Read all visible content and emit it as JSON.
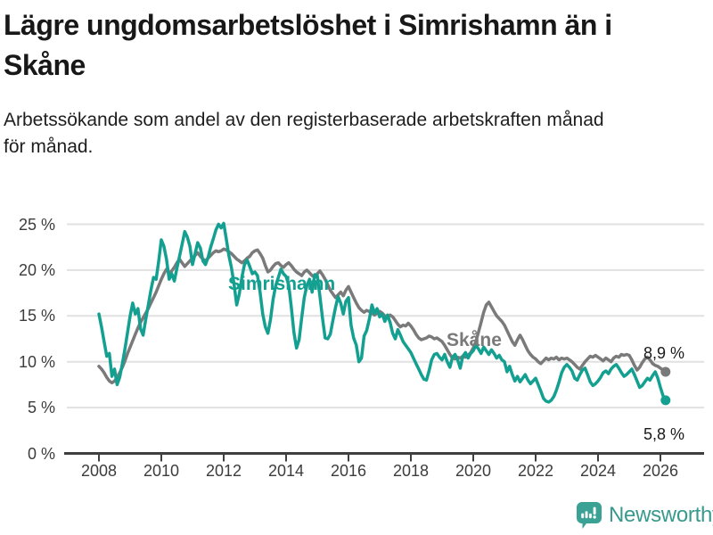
{
  "header": {
    "title_lines": [
      "Lägre ungdomsarbetslöshet i Simrishamn än i",
      "Skåne"
    ],
    "subtitle_lines": [
      "Arbetssökande som andel av den registerbaserade arbetskraften månad",
      "för månad."
    ]
  },
  "chart_data": {
    "type": "line",
    "title": "Lägre ungdomsarbetslöshet i Simrishamn än i Skåne",
    "subtitle": "Arbetssökande som andel av den registerbaserade arbetskraften månad för månad.",
    "xlabel": "",
    "ylabel": "",
    "x_unit": "monthly, Jan 2008 – Mar 2026",
    "x_start_year": 2008,
    "ylim": [
      0,
      25
    ],
    "grid": "horizontal",
    "legend": "inline-labels",
    "y_ticks": [
      {
        "label": "0 %",
        "value": 0
      },
      {
        "label": "5 %",
        "value": 5
      },
      {
        "label": "10 %",
        "value": 10
      },
      {
        "label": "15 %",
        "value": 15
      },
      {
        "label": "20 %",
        "value": 20
      },
      {
        "label": "25 %",
        "value": 25
      }
    ],
    "x_ticks": [
      {
        "label": "2008",
        "year": 2008
      },
      {
        "label": "2010",
        "year": 2010
      },
      {
        "label": "2012",
        "year": 2012
      },
      {
        "label": "2014",
        "year": 2014
      },
      {
        "label": "2016",
        "year": 2016
      },
      {
        "label": "2018",
        "year": 2018
      },
      {
        "label": "2020",
        "year": 2020
      },
      {
        "label": "2022",
        "year": 2022
      },
      {
        "label": "2024",
        "year": 2024
      },
      {
        "label": "2026",
        "year": 2026
      }
    ],
    "series": [
      {
        "name": "Simrishamn",
        "color": "#14a091",
        "end_label": "5,8 %",
        "end_value": 5.8,
        "values": [
          15.2,
          13.8,
          12.2,
          10.6,
          10.9,
          8.4,
          9.2,
          7.5,
          8.3,
          9.8,
          11.4,
          13.2,
          15.0,
          16.4,
          15.2,
          15.8,
          13.6,
          12.9,
          14.6,
          16.2,
          17.8,
          19.2,
          19.0,
          21.0,
          23.3,
          22.6,
          21.2,
          19.0,
          19.6,
          18.8,
          20.2,
          21.5,
          22.8,
          24.2,
          23.6,
          22.6,
          20.6,
          21.8,
          23.0,
          22.4,
          21.0,
          20.6,
          21.4,
          22.5,
          23.4,
          24.4,
          25.0,
          24.6,
          25.1,
          23.4,
          21.6,
          20.2,
          18.4,
          16.2,
          17.4,
          19.2,
          20.6,
          21.1,
          20.4,
          19.6,
          19.8,
          19.4,
          17.6,
          15.2,
          13.8,
          13.1,
          14.6,
          16.8,
          18.3,
          19.2,
          20.1,
          19.6,
          19.3,
          18.4,
          16.0,
          13.2,
          11.5,
          12.4,
          14.8,
          17.0,
          18.3,
          19.0,
          17.6,
          19.5,
          19.4,
          17.2,
          14.8,
          12.6,
          12.5,
          13.0,
          14.5,
          15.9,
          17.1,
          16.4,
          15.2,
          16.6,
          17.0,
          14.0,
          12.6,
          11.8,
          10.0,
          10.4,
          12.8,
          13.4,
          14.6,
          16.2,
          15.3,
          15.8,
          14.9,
          15.2,
          14.4,
          15.1,
          14.3,
          13.1,
          12.5,
          13.5,
          12.9,
          12.2,
          11.8,
          11.4,
          11.0,
          10.4,
          9.8,
          9.2,
          8.6,
          8.1,
          8.0,
          9.0,
          10.2,
          10.8,
          10.9,
          10.5,
          10.2,
          10.8,
          10.0,
          9.4,
          10.5,
          10.8,
          10.2,
          9.3,
          10.6,
          11.0,
          10.4,
          10.9,
          11.2,
          11.8,
          11.4,
          10.9,
          11.6,
          11.2,
          10.8,
          11.3,
          10.9,
          10.4,
          10.7,
          10.2,
          10.0,
          8.9,
          9.5,
          8.6,
          7.9,
          8.4,
          7.8,
          8.2,
          8.6,
          8.0,
          7.6,
          7.9,
          8.2,
          7.5,
          6.8,
          6.0,
          5.7,
          5.6,
          5.8,
          6.2,
          6.9,
          7.8,
          8.8,
          9.4,
          9.7,
          9.4,
          9.0,
          8.2,
          8.0,
          8.6,
          9.1,
          9.3,
          8.6,
          7.8,
          7.4,
          7.6,
          7.9,
          8.3,
          8.8,
          9.0,
          8.7,
          9.2,
          9.5,
          9.7,
          9.3,
          8.8,
          8.4,
          8.6,
          8.9,
          9.2,
          8.6,
          7.9,
          7.2,
          7.4,
          7.8,
          8.2,
          8.0,
          8.5,
          8.9,
          8.2,
          7.2,
          6.3,
          5.8
        ]
      },
      {
        "name": "Skåne",
        "color": "#7a7a7a",
        "end_label": "8,9 %",
        "end_value": 8.9,
        "values": [
          9.5,
          9.2,
          8.8,
          8.3,
          7.9,
          7.7,
          7.9,
          8.3,
          8.8,
          9.4,
          10.1,
          10.9,
          11.6,
          12.3,
          13.0,
          13.7,
          14.3,
          14.8,
          15.3,
          15.8,
          16.4,
          17.0,
          17.6,
          18.3,
          19.0,
          19.6,
          20.1,
          19.7,
          19.9,
          20.3,
          20.8,
          21.2,
          20.8,
          20.4,
          20.7,
          21.0,
          21.3,
          21.6,
          21.9,
          21.5,
          21.2,
          21.0,
          21.3,
          21.6,
          21.9,
          22.1,
          22.0,
          22.1,
          22.3,
          22.2,
          22.0,
          21.8,
          21.5,
          21.2,
          21.0,
          20.8,
          21.0,
          21.3,
          21.5,
          21.9,
          22.1,
          22.2,
          21.8,
          21.3,
          20.5,
          19.8,
          20.0,
          20.4,
          20.7,
          20.8,
          20.5,
          20.3,
          20.6,
          20.8,
          20.5,
          20.1,
          19.8,
          19.6,
          19.4,
          19.8,
          20.0,
          19.7,
          19.4,
          19.2,
          19.6,
          19.9,
          19.5,
          19.0,
          18.4,
          17.8,
          17.4,
          17.0,
          17.3,
          17.6,
          17.2,
          17.8,
          18.2,
          17.6,
          17.0,
          16.4,
          15.9,
          15.6,
          15.4,
          15.6,
          15.5,
          15.3,
          15.1,
          15.3,
          15.5,
          15.3,
          15.0,
          14.8,
          15.1,
          14.9,
          14.5,
          14.1,
          13.8,
          14.0,
          13.9,
          14.2,
          13.9,
          13.5,
          13.0,
          12.6,
          12.4,
          12.5,
          12.6,
          12.8,
          12.7,
          12.5,
          12.6,
          12.4,
          12.2,
          11.8,
          11.3,
          10.8,
          10.4,
          10.3,
          10.5,
          10.4,
          10.6,
          10.5,
          10.7,
          11.0,
          11.5,
          12.2,
          13.2,
          14.3,
          15.4,
          16.2,
          16.5,
          16.0,
          15.5,
          15.0,
          14.7,
          14.4,
          14.0,
          13.4,
          12.8,
          12.2,
          11.8,
          12.4,
          12.9,
          12.4,
          11.8,
          11.2,
          10.8,
          10.5,
          10.3,
          10.0,
          9.8,
          10.1,
          10.4,
          10.2,
          10.4,
          10.3,
          10.5,
          10.2,
          10.4,
          10.3,
          10.4,
          10.2,
          10.0,
          9.7,
          9.4,
          9.2,
          9.6,
          10.0,
          10.3,
          10.6,
          10.5,
          10.7,
          10.5,
          10.3,
          10.1,
          10.4,
          10.2,
          10.0,
          10.4,
          10.6,
          10.5,
          10.8,
          10.7,
          10.8,
          10.7,
          10.2,
          9.6,
          9.1,
          9.4,
          9.9,
          10.3,
          10.5,
          10.2,
          9.8,
          9.6,
          9.5,
          9.3,
          9.1,
          8.9
        ]
      }
    ],
    "colors": {
      "simrishamn": "#14a091",
      "skane": "#7a7a7a",
      "gridline": "#e1e1e1",
      "axis": "#3f3f3f",
      "tick_text": "#3c3c3c"
    }
  },
  "footer": {
    "brand": "Newsworthy",
    "logo_icon": "newsworthy-chart-bubble-icon"
  }
}
